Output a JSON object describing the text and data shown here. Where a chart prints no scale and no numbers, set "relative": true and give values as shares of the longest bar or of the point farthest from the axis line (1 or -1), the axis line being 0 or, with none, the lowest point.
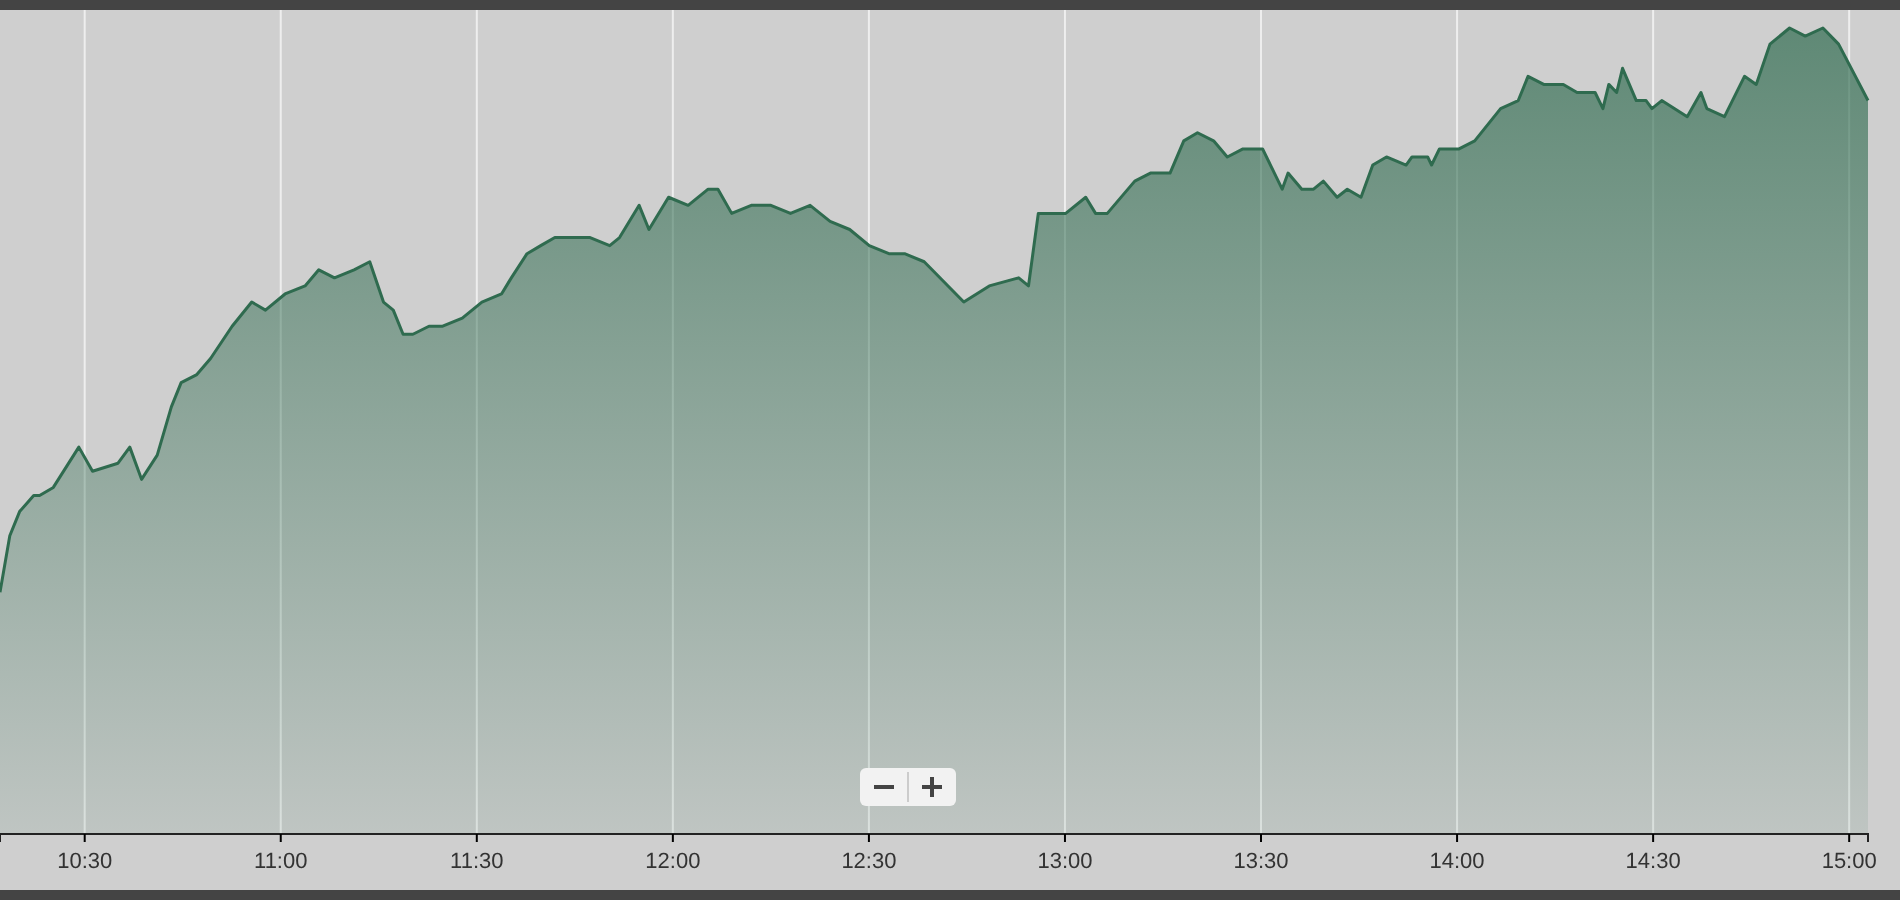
{
  "chart_data": {
    "type": "area",
    "relative": true,
    "grid": "x",
    "marker": "none",
    "line_style": "solid",
    "xlim": [
      10.284,
      15.048
    ],
    "xticks": [
      {
        "value": 10.5,
        "label": "10:30"
      },
      {
        "value": 11,
        "label": "11:00"
      },
      {
        "value": 11.5,
        "label": "11:30"
      },
      {
        "value": 12,
        "label": "12:00"
      },
      {
        "value": 12.5,
        "label": "12:30"
      },
      {
        "value": 13,
        "label": "13:00"
      },
      {
        "value": 13.5,
        "label": "13:30"
      },
      {
        "value": 14,
        "label": "14:00"
      },
      {
        "value": 14.5,
        "label": "14:30"
      },
      {
        "value": 15,
        "label": "15:00"
      }
    ],
    "x": [
      10.284,
      10.309,
      10.334,
      10.37,
      10.385,
      10.42,
      10.485,
      10.52,
      10.585,
      10.615,
      10.645,
      10.685,
      10.721,
      10.746,
      10.786,
      10.821,
      10.876,
      10.926,
      10.961,
      11.011,
      11.062,
      11.097,
      11.137,
      11.187,
      11.227,
      11.262,
      11.287,
      11.312,
      11.337,
      11.378,
      11.413,
      11.463,
      11.513,
      11.563,
      11.588,
      11.628,
      11.663,
      11.699,
      11.739,
      11.789,
      11.839,
      11.864,
      11.914,
      11.939,
      11.989,
      12.039,
      12.09,
      12.115,
      12.15,
      12.2,
      12.25,
      12.3,
      12.35,
      12.401,
      12.451,
      12.501,
      12.551,
      12.591,
      12.641,
      12.742,
      12.807,
      12.882,
      12.907,
      12.932,
      13.002,
      13.053,
      13.078,
      13.108,
      13.178,
      13.218,
      13.268,
      13.303,
      13.338,
      13.379,
      13.414,
      13.454,
      13.504,
      13.554,
      13.569,
      13.604,
      13.634,
      13.659,
      13.694,
      13.72,
      13.755,
      13.785,
      13.82,
      13.87,
      13.885,
      13.91,
      13.925,
      13.935,
      13.955,
      14.005,
      14.045,
      14.111,
      14.156,
      14.181,
      14.221,
      14.271,
      14.306,
      14.352,
      14.372,
      14.387,
      14.407,
      14.422,
      14.457,
      14.482,
      14.497,
      14.522,
      14.587,
      14.622,
      14.637,
      14.682,
      14.733,
      14.763,
      14.798,
      14.848,
      14.888,
      14.933,
      14.973,
      15.048
    ],
    "series": [
      {
        "color": "#2f6b4f",
        "values": [
          0.3,
          0.37,
          0.4,
          0.42,
          0.42,
          0.43,
          0.48,
          0.45,
          0.46,
          0.48,
          0.44,
          0.47,
          0.53,
          0.56,
          0.57,
          0.59,
          0.63,
          0.66,
          0.65,
          0.67,
          0.68,
          0.7,
          0.69,
          0.7,
          0.71,
          0.66,
          0.65,
          0.62,
          0.62,
          0.63,
          0.63,
          0.64,
          0.66,
          0.67,
          0.69,
          0.72,
          0.73,
          0.74,
          0.74,
          0.74,
          0.73,
          0.74,
          0.78,
          0.75,
          0.79,
          0.78,
          0.8,
          0.8,
          0.77,
          0.78,
          0.78,
          0.77,
          0.78,
          0.76,
          0.75,
          0.73,
          0.72,
          0.72,
          0.71,
          0.66,
          0.68,
          0.69,
          0.68,
          0.77,
          0.77,
          0.79,
          0.77,
          0.77,
          0.81,
          0.82,
          0.82,
          0.86,
          0.87,
          0.86,
          0.84,
          0.85,
          0.85,
          0.8,
          0.82,
          0.8,
          0.8,
          0.81,
          0.79,
          0.8,
          0.79,
          0.83,
          0.84,
          0.83,
          0.84,
          0.84,
          0.84,
          0.83,
          0.85,
          0.85,
          0.86,
          0.9,
          0.91,
          0.94,
          0.93,
          0.93,
          0.92,
          0.92,
          0.9,
          0.93,
          0.92,
          0.95,
          0.91,
          0.91,
          0.9,
          0.91,
          0.89,
          0.92,
          0.9,
          0.89,
          0.94,
          0.93,
          0.98,
          1,
          0.99,
          1.0,
          0.98,
          0.91
        ]
      }
    ]
  }
}
